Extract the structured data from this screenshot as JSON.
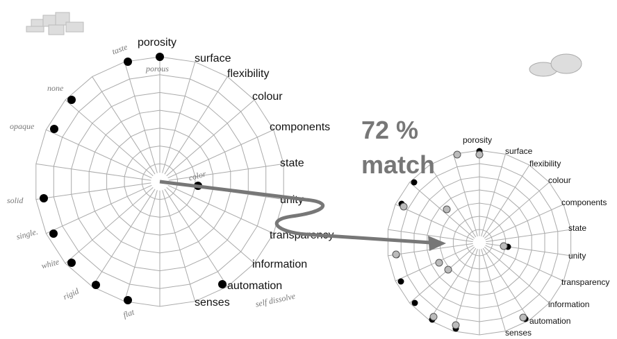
{
  "left_chart": {
    "labels": [
      "porosity",
      "surface",
      "flexibility",
      "colour",
      "components",
      "state",
      "unity",
      "transparency",
      "information",
      "automation",
      "senses"
    ],
    "notes": [
      "taste",
      "porous",
      "none",
      "opaque",
      "solid",
      "single.",
      "white",
      "rigid",
      "flat",
      "self dissolve",
      "color"
    ]
  },
  "match": {
    "percent": "72 %",
    "word": "match"
  },
  "right_chart": {
    "labels": [
      "porosity",
      "surface",
      "flexibility",
      "colour",
      "components",
      "state",
      "unity",
      "transparency",
      "information",
      "automation",
      "senses"
    ]
  }
}
